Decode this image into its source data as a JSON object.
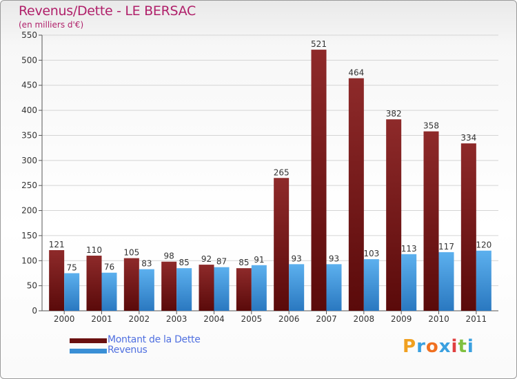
{
  "colors": {
    "debt": "#7a1a1a",
    "revenue": "#3a8fd6",
    "title": "#b0206a",
    "legend_text": "#5070e0"
  },
  "chart_data": {
    "type": "bar",
    "title": "Revenus/Dette - LE BERSAC",
    "subtitle": "(en milliers d'€)",
    "categories": [
      "2000",
      "2001",
      "2002",
      "2003",
      "2004",
      "2005",
      "2006",
      "2007",
      "2008",
      "2009",
      "2010",
      "2011"
    ],
    "series": [
      {
        "name": "Montant de la Dette",
        "values": [
          121,
          110,
          105,
          98,
          92,
          85,
          265,
          521,
          464,
          382,
          358,
          334
        ]
      },
      {
        "name": "Revenus",
        "values": [
          75,
          76,
          83,
          85,
          87,
          91,
          93,
          93,
          103,
          113,
          117,
          120
        ]
      }
    ],
    "ylim": [
      0,
      550
    ],
    "yticks": [
      0,
      50,
      100,
      150,
      200,
      250,
      300,
      350,
      400,
      450,
      500,
      550
    ],
    "grid": true,
    "legend_position": "bottom-left"
  },
  "logo": {
    "text": "Proxiti",
    "letters": [
      "P",
      "r",
      "o",
      "x",
      "i",
      "t",
      "i"
    ],
    "letter_colors": [
      "#f0a020",
      "#3aa0e0",
      "#f07020",
      "#3aa0e0",
      "#e04040",
      "#80c040",
      "#3aa0e0"
    ]
  }
}
